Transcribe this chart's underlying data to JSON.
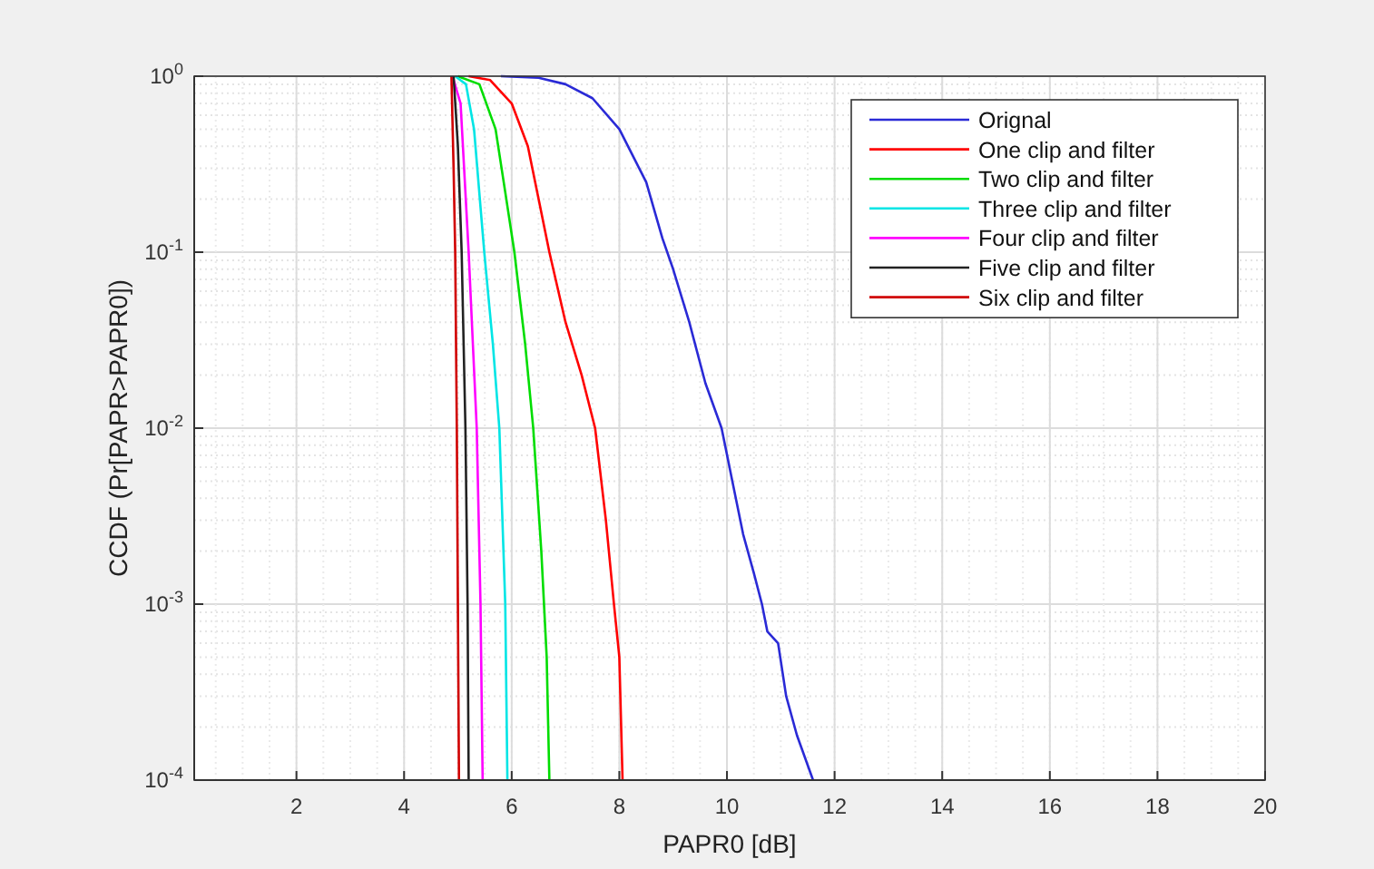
{
  "chart_data": {
    "type": "line",
    "xlabel": "PAPR0 [dB]",
    "ylabel": "CCDF (Pr[PAPR>PAPR0])",
    "xlim": [
      0.1,
      20
    ],
    "xticks": [
      2,
      4,
      6,
      8,
      10,
      12,
      14,
      16,
      18,
      20
    ],
    "ylim": [
      0.0001,
      1
    ],
    "yticks": [
      {
        "value": 0.0001,
        "label": "10$^{-4}$"
      },
      {
        "value": 0.001,
        "label": "10$^{-3}$"
      },
      {
        "value": 0.01,
        "label": "10$^{-2}$"
      },
      {
        "value": 0.1,
        "label": "10$^{-1}$"
      },
      {
        "value": 1,
        "label": "10$^{0}$"
      }
    ],
    "log": "y",
    "grid": true,
    "legend": "top right",
    "line_style": "solid",
    "marker": "none",
    "series": [
      {
        "name": "Orignal",
        "color": "#2a2ad6",
        "x": [
          5.8,
          6.5,
          7,
          7.5,
          8,
          8.5,
          8.8,
          9,
          9.3,
          9.6,
          9.9,
          10.1,
          10.3,
          10.5,
          10.65,
          10.75,
          10.95,
          11.1,
          11.3,
          11.6
        ],
        "values": [
          1,
          0.98,
          0.9,
          0.75,
          0.5,
          0.25,
          0.12,
          0.08,
          0.04,
          0.018,
          0.01,
          0.005,
          0.0025,
          0.0015,
          0.001,
          0.0007,
          0.0006,
          0.0003,
          0.00018,
          0.0001
        ]
      },
      {
        "name": "One clip and filter",
        "color": "#ff0000",
        "x": [
          5.2,
          5.6,
          6,
          6.3,
          6.5,
          6.7,
          7.0,
          7.3,
          7.55,
          7.75,
          7.9,
          8.0,
          8.06
        ],
        "values": [
          1,
          0.95,
          0.7,
          0.4,
          0.2,
          0.1,
          0.04,
          0.02,
          0.01,
          0.003,
          0.001,
          0.0005,
          0.0001
        ]
      },
      {
        "name": "Two clip and filter",
        "color": "#00dd00",
        "x": [
          5.0,
          5.4,
          5.7,
          5.9,
          6.05,
          6.25,
          6.4,
          6.55,
          6.65,
          6.7
        ],
        "values": [
          1,
          0.9,
          0.5,
          0.2,
          0.1,
          0.03,
          0.01,
          0.002,
          0.0005,
          0.0001
        ]
      },
      {
        "name": "Three clip and filter",
        "color": "#00e5e5",
        "x": [
          4.95,
          5.15,
          5.3,
          5.49,
          5.65,
          5.77,
          5.88,
          5.92
        ],
        "values": [
          1,
          0.9,
          0.5,
          0.1,
          0.03,
          0.01,
          0.001,
          0.0001
        ]
      },
      {
        "name": "Four clip and filter",
        "color": "#ff00ff",
        "x": [
          4.9,
          5.05,
          5.2,
          5.35,
          5.42,
          5.46
        ],
        "values": [
          1,
          0.7,
          0.1,
          0.01,
          0.001,
          0.0001
        ]
      },
      {
        "name": "Five clip and filter",
        "color": "#222222",
        "x": [
          4.92,
          5.0,
          5.07,
          5.14,
          5.18,
          5.2
        ],
        "values": [
          1,
          0.4,
          0.1,
          0.01,
          0.001,
          0.0001
        ]
      },
      {
        "name": "Six clip and filter",
        "color": "#d00000",
        "x": [
          4.88,
          4.92,
          4.95,
          4.98,
          5.0,
          5.02
        ],
        "values": [
          1,
          0.3,
          0.1,
          0.01,
          0.001,
          0.0001
        ]
      }
    ]
  }
}
